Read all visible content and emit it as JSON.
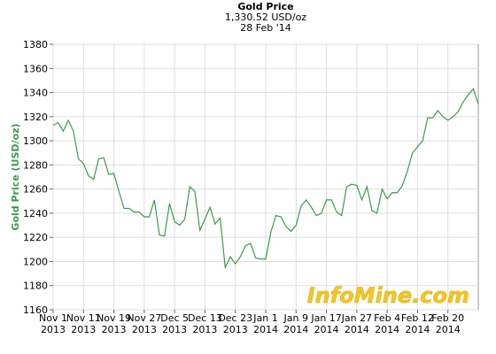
{
  "chart_data": {
    "type": "line",
    "title": "Gold Price",
    "subtitle": "1,330.52 USD/oz",
    "date": "28 Feb '14",
    "y_label": "Gold Price (USD/oz)",
    "watermark": "InfoMine.com",
    "x": [
      "2013-11-01",
      "2013-11-04",
      "2013-11-05",
      "2013-11-06",
      "2013-11-07",
      "2013-11-08",
      "2013-11-11",
      "2013-11-12",
      "2013-11-13",
      "2013-11-14",
      "2013-11-15",
      "2013-11-18",
      "2013-11-19",
      "2013-11-20",
      "2013-11-21",
      "2013-11-22",
      "2013-11-25",
      "2013-11-26",
      "2013-11-27",
      "2013-11-28",
      "2013-11-29",
      "2013-12-02",
      "2013-12-03",
      "2013-12-04",
      "2013-12-05",
      "2013-12-06",
      "2013-12-09",
      "2013-12-10",
      "2013-12-11",
      "2013-12-12",
      "2013-12-13",
      "2013-12-16",
      "2013-12-17",
      "2013-12-18",
      "2013-12-19",
      "2013-12-20",
      "2013-12-23",
      "2013-12-24",
      "2013-12-26",
      "2013-12-27",
      "2013-12-30",
      "2013-12-31",
      "2014-01-01",
      "2014-01-02",
      "2014-01-03",
      "2014-01-06",
      "2014-01-07",
      "2014-01-08",
      "2014-01-09",
      "2014-01-10",
      "2014-01-13",
      "2014-01-14",
      "2014-01-15",
      "2014-01-16",
      "2014-01-17",
      "2014-01-20",
      "2014-01-21",
      "2014-01-22",
      "2014-01-23",
      "2014-01-24",
      "2014-01-27",
      "2014-01-28",
      "2014-01-29",
      "2014-01-30",
      "2014-01-31",
      "2014-02-03",
      "2014-02-04",
      "2014-02-05",
      "2014-02-06",
      "2014-02-07",
      "2014-02-10",
      "2014-02-11",
      "2014-02-12",
      "2014-02-13",
      "2014-02-14",
      "2014-02-17",
      "2014-02-18",
      "2014-02-19",
      "2014-02-20",
      "2014-02-21",
      "2014-02-24",
      "2014-02-25",
      "2014-02-26",
      "2014-02-27",
      "2014-02-28"
    ],
    "series": [
      {
        "name": "Gold Price",
        "color": "#3c9a4c",
        "values": [
          1313,
          1315,
          1308,
          1317,
          1308,
          1285,
          1281,
          1271,
          1268,
          1285,
          1286,
          1272,
          1273,
          1258,
          1244,
          1244,
          1241,
          1241,
          1237,
          1237,
          1251,
          1222,
          1221,
          1248,
          1233,
          1230,
          1235,
          1262,
          1258,
          1226,
          1235,
          1245,
          1231,
          1236,
          1195,
          1204,
          1198,
          1204,
          1213,
          1215,
          1203,
          1202,
          1202,
          1224,
          1238,
          1237,
          1229,
          1225,
          1230,
          1246,
          1251,
          1245,
          1238,
          1240,
          1251,
          1251,
          1241,
          1238,
          1262,
          1264,
          1263,
          1251,
          1262,
          1242,
          1240,
          1260,
          1252,
          1257,
          1257,
          1263,
          1275,
          1290,
          1295,
          1300,
          1319,
          1319,
          1325,
          1320,
          1317,
          1320,
          1324,
          1332,
          1338,
          1343,
          1330.52
        ]
      }
    ],
    "xticks": [
      {
        "value": "2013-11-01",
        "label": "Nov 1\n2013"
      },
      {
        "value": "2013-11-11",
        "label": "Nov 11\n2013"
      },
      {
        "value": "2013-11-19",
        "label": "Nov 19\n2013"
      },
      {
        "value": "2013-11-27",
        "label": "Nov 27\n2013"
      },
      {
        "value": "2013-12-05",
        "label": "Dec 5\n2013"
      },
      {
        "value": "2013-12-13",
        "label": "Dec 13\n2013"
      },
      {
        "value": "2013-12-23",
        "label": "Dec 23\n2013"
      },
      {
        "value": "2014-01-01",
        "label": "Jan 1\n2014"
      },
      {
        "value": "2014-01-09",
        "label": "Jan 9\n2014"
      },
      {
        "value": "2014-01-17",
        "label": "Jan 17\n2014"
      },
      {
        "value": "2014-01-27",
        "label": "Jan 27\n2014"
      },
      {
        "value": "2014-02-04",
        "label": "Feb 4\n2014"
      },
      {
        "value": "2014-02-12",
        "label": "Feb 12\n2014"
      },
      {
        "value": "2014-02-20",
        "label": "Feb 20\n2014"
      }
    ],
    "ylim": [
      1160,
      1380
    ],
    "yticks": [
      1160,
      1180,
      1200,
      1220,
      1240,
      1260,
      1280,
      1300,
      1320,
      1340,
      1360,
      1380
    ],
    "grid": true
  }
}
